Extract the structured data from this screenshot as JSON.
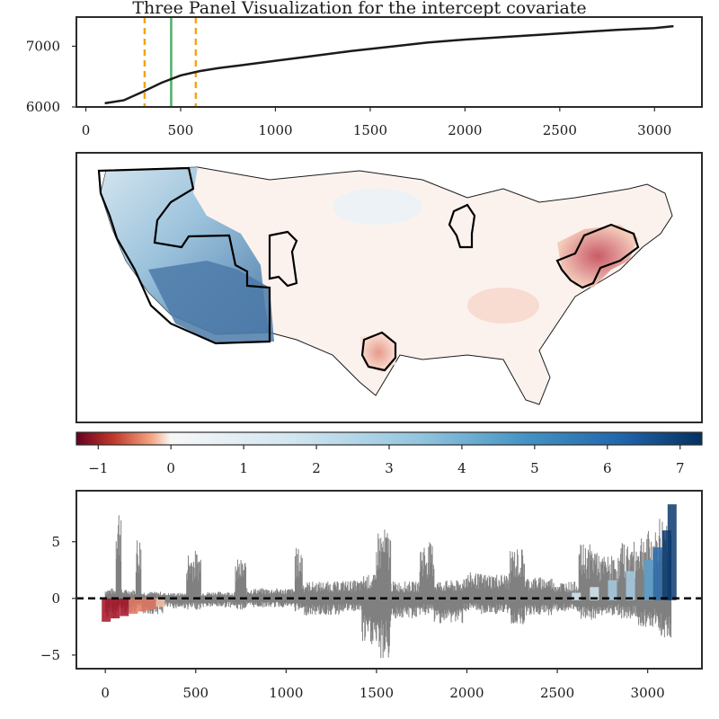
{
  "chart_data": [
    {
      "panel": "top",
      "type": "line",
      "title": "Three Panel Visualization for the intercept covariate",
      "xlabel": "",
      "ylabel": "",
      "xlim": [
        -50,
        3250
      ],
      "ylim": [
        6000,
        7480
      ],
      "xticks": [
        0,
        500,
        1000,
        1500,
        2000,
        2500,
        3000
      ],
      "xtick_labels": [
        "0",
        "500",
        "1000",
        "1500",
        "2000",
        "2500",
        "3000"
      ],
      "yticks": [
        6000,
        7000
      ],
      "ytick_labels": [
        "6000",
        "7000"
      ],
      "series": [
        {
          "color": "#1b1b1b",
          "x": [
            100,
            200,
            300,
            400,
            500,
            600,
            700,
            800,
            1000,
            1200,
            1400,
            1600,
            1800,
            2000,
            2200,
            2400,
            2600,
            2800,
            3000,
            3100
          ],
          "y": [
            6060,
            6110,
            6250,
            6400,
            6520,
            6590,
            6640,
            6680,
            6760,
            6840,
            6920,
            6990,
            7060,
            7110,
            7150,
            7190,
            7230,
            7270,
            7300,
            7330
          ]
        }
      ],
      "vlines": [
        {
          "x": 310,
          "color": "#f2a516",
          "style": "dashed"
        },
        {
          "x": 580,
          "color": "#f2a516",
          "style": "dashed"
        },
        {
          "x": 450,
          "color": "#4caf6a",
          "style": "solid"
        }
      ]
    },
    {
      "panel": "middle",
      "type": "heatmap",
      "description_free": true,
      "colormap": "RdBu",
      "colorbar": {
        "range": [
          -1.3,
          7.3
        ],
        "ticks": [
          -1,
          0,
          1,
          2,
          3,
          4,
          5,
          6,
          7
        ],
        "tick_labels": [
          "−1",
          "0",
          "1",
          "2",
          "3",
          "4",
          "5",
          "6",
          "7"
        ]
      }
    },
    {
      "panel": "bottom",
      "type": "scatter",
      "xlim": [
        -160,
        3300
      ],
      "ylim": [
        -6.2,
        9.5
      ],
      "xticks": [
        0,
        500,
        1000,
        1500,
        2000,
        2500,
        3000
      ],
      "xtick_labels": [
        "0",
        "500",
        "1000",
        "1500",
        "2000",
        "2500",
        "3000"
      ],
      "yticks": [
        -5,
        0,
        5
      ],
      "ytick_labels": [
        "−5",
        "0",
        "5"
      ],
      "hline": {
        "y": 0,
        "color": "#000000",
        "style": "dashed"
      },
      "errorbar_color": "#808080",
      "segments": [
        {
          "x": [
            0,
            60
          ],
          "low": -1.8,
          "high": 0.9
        },
        {
          "x": [
            60,
            90
          ],
          "low": -1.2,
          "high": 8.7
        },
        {
          "x": [
            90,
            170
          ],
          "low": -1.3,
          "high": 0.8
        },
        {
          "x": [
            170,
            200
          ],
          "low": -1.0,
          "high": 5.7
        },
        {
          "x": [
            200,
            320
          ],
          "low": -1.4,
          "high": 0.6
        },
        {
          "x": [
            320,
            450
          ],
          "low": -0.9,
          "high": 0.5
        },
        {
          "x": [
            450,
            530
          ],
          "low": -1.0,
          "high": 4.3
        },
        {
          "x": [
            530,
            720
          ],
          "low": -0.8,
          "high": 0.6
        },
        {
          "x": [
            720,
            780
          ],
          "low": -1.0,
          "high": 3.5
        },
        {
          "x": [
            780,
            1050
          ],
          "low": -0.8,
          "high": 0.9
        },
        {
          "x": [
            1050,
            1090
          ],
          "low": -1.2,
          "high": 4.5
        },
        {
          "x": [
            1090,
            1300
          ],
          "low": -1.5,
          "high": 1.5
        },
        {
          "x": [
            1300,
            1420
          ],
          "low": -1.2,
          "high": 1.6
        },
        {
          "x": [
            1420,
            1500
          ],
          "low": -4.2,
          "high": 2.1
        },
        {
          "x": [
            1500,
            1580
          ],
          "low": -5.5,
          "high": 6.2
        },
        {
          "x": [
            1580,
            1740
          ],
          "low": -1.8,
          "high": 1.5
        },
        {
          "x": [
            1740,
            1820
          ],
          "low": -1.5,
          "high": 5.0
        },
        {
          "x": [
            1820,
            1980
          ],
          "low": -2.2,
          "high": 1.6
        },
        {
          "x": [
            1980,
            2060
          ],
          "low": -1.2,
          "high": 2.3
        },
        {
          "x": [
            2060,
            2240
          ],
          "low": -1.4,
          "high": 2.2
        },
        {
          "x": [
            2240,
            2320
          ],
          "low": -2.3,
          "high": 4.5
        },
        {
          "x": [
            2320,
            2480
          ],
          "low": -1.5,
          "high": 1.9
        },
        {
          "x": [
            2480,
            2620
          ],
          "low": -1.2,
          "high": 1.5
        },
        {
          "x": [
            2620,
            2720
          ],
          "low": -2.0,
          "high": 4.8
        },
        {
          "x": [
            2720,
            2850
          ],
          "low": -1.5,
          "high": 3.8
        },
        {
          "x": [
            2850,
            2950
          ],
          "low": -1.8,
          "high": 5.0
        },
        {
          "x": [
            2950,
            3060
          ],
          "low": -2.5,
          "high": 6.0
        },
        {
          "x": [
            3060,
            3130
          ],
          "low": -3.5,
          "high": 7.5
        }
      ],
      "colored_points": {
        "colormap": "RdBu",
        "x": [
          0,
          50,
          100,
          150,
          200,
          250,
          300,
          2600,
          2700,
          2800,
          2900,
          3000,
          3050,
          3100,
          3130
        ],
        "y": [
          -1.9,
          -1.6,
          -1.4,
          -1.2,
          -1.0,
          -0.8,
          -0.6,
          0.5,
          1.0,
          1.6,
          2.4,
          3.4,
          4.5,
          6.0,
          8.3
        ]
      }
    }
  ]
}
